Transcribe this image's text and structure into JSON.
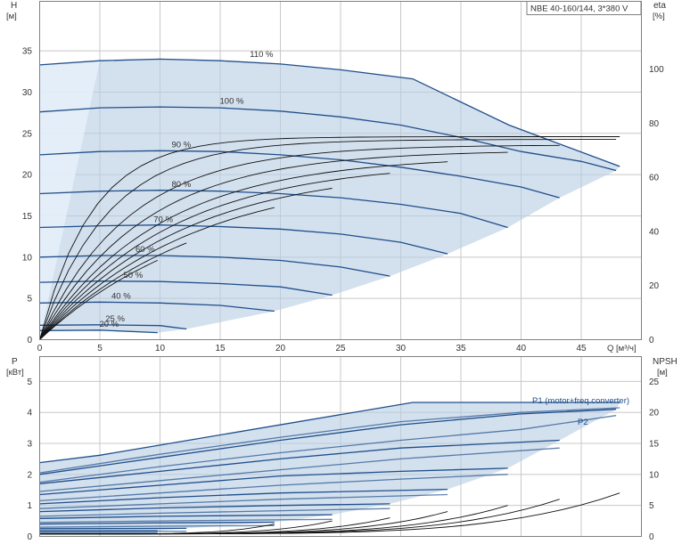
{
  "chart_data": [
    {
      "type": "line",
      "title": "NBE 40-160/144, 3*380 V",
      "y_axis": {
        "label": "H",
        "unit": "[м]",
        "range": [
          0,
          41
        ],
        "ticks": [
          0,
          5,
          10,
          15,
          20,
          25,
          30,
          35
        ]
      },
      "y2_axis": {
        "label": "eta",
        "unit": "[%]",
        "range": [
          0,
          125
        ],
        "ticks": [
          0,
          20,
          40,
          60,
          80,
          100
        ]
      },
      "x_axis": {
        "label": "Q [м³/ч]",
        "range": [
          0,
          50
        ],
        "ticks": [
          0,
          5,
          10,
          15,
          20,
          25,
          30,
          35,
          40,
          45
        ]
      },
      "grid": true,
      "speed_curves": [
        {
          "name": "110 %",
          "points": [
            [
              0,
              33.3
            ],
            [
              5,
              33.8
            ],
            [
              10,
              34.0
            ],
            [
              15,
              33.8
            ],
            [
              20,
              33.4
            ],
            [
              25,
              32.7
            ],
            [
              31,
              31.6
            ],
            [
              39,
              26.0
            ],
            [
              48.2,
              21.0
            ]
          ]
        },
        {
          "name": "100 %",
          "points": [
            [
              0,
              27.6
            ],
            [
              5,
              28.1
            ],
            [
              10,
              28.2
            ],
            [
              15,
              28.1
            ],
            [
              20,
              27.7
            ],
            [
              25,
              27.0
            ],
            [
              30,
              26.0
            ],
            [
              35,
              24.5
            ],
            [
              40,
              22.8
            ],
            [
              45,
              21.6
            ],
            [
              47.9,
              20.5
            ]
          ]
        },
        {
          "name": "90 %",
          "points": [
            [
              0,
              22.4
            ],
            [
              5,
              22.8
            ],
            [
              10,
              22.9
            ],
            [
              15,
              22.8
            ],
            [
              20,
              22.4
            ],
            [
              25,
              21.8
            ],
            [
              30,
              20.9
            ],
            [
              35,
              19.8
            ],
            [
              40,
              18.5
            ],
            [
              43.2,
              17.2
            ]
          ]
        },
        {
          "name": "80 %",
          "points": [
            [
              0,
              17.7
            ],
            [
              5,
              18.0
            ],
            [
              10,
              18.1
            ],
            [
              15,
              18.0
            ],
            [
              20,
              17.7
            ],
            [
              25,
              17.2
            ],
            [
              30,
              16.4
            ],
            [
              35,
              15.3
            ],
            [
              38.9,
              13.6
            ]
          ]
        },
        {
          "name": "70 %",
          "points": [
            [
              0,
              13.6
            ],
            [
              5,
              13.8
            ],
            [
              10,
              13.9
            ],
            [
              15,
              13.7
            ],
            [
              20,
              13.4
            ],
            [
              25,
              12.8
            ],
            [
              30,
              11.8
            ],
            [
              33.9,
              10.4
            ]
          ]
        },
        {
          "name": "60 %",
          "points": [
            [
              0,
              10.0
            ],
            [
              5,
              10.2
            ],
            [
              10,
              10.2
            ],
            [
              15,
              10.0
            ],
            [
              20,
              9.6
            ],
            [
              25,
              8.8
            ],
            [
              29.1,
              7.7
            ]
          ]
        },
        {
          "name": "50 %",
          "points": [
            [
              0,
              6.95
            ],
            [
              5,
              7.1
            ],
            [
              10,
              7.05
            ],
            [
              15,
              6.8
            ],
            [
              20,
              6.4
            ],
            [
              24.3,
              5.4
            ]
          ]
        },
        {
          "name": "40 %",
          "points": [
            [
              0,
              4.45
            ],
            [
              5,
              4.55
            ],
            [
              10,
              4.45
            ],
            [
              15,
              4.15
            ],
            [
              19.5,
              3.45
            ]
          ]
        },
        {
          "name": "25 %",
          "points": [
            [
              0,
              1.75
            ],
            [
              5,
              1.8
            ],
            [
              10,
              1.7
            ],
            [
              12.2,
              1.3
            ]
          ]
        },
        {
          "name": "20 %",
          "points": [
            [
              0,
              1.1
            ],
            [
              5,
              1.15
            ],
            [
              9.8,
              0.85
            ]
          ]
        }
      ],
      "eta_curves": [
        {
          "peak": 75,
          "qmax": 48.2,
          "q90": 10
        },
        {
          "peak": 74,
          "qmax": 47.9,
          "q90": 13
        },
        {
          "peak": 72,
          "qmax": 43.2,
          "q90": 17
        },
        {
          "peak": 70,
          "qmax": 38.9,
          "q90": 20
        },
        {
          "peak": 68,
          "qmax": 33.9,
          "q90": 23
        },
        {
          "peak": 66,
          "qmax": 29.1,
          "q90": 25
        },
        {
          "peak": 64,
          "qmax": 24.3,
          "q90": 27
        },
        {
          "peak": 62,
          "qmax": 19.5,
          "q90": 29
        },
        {
          "peak": 60,
          "qmax": 12.2,
          "q90": 31
        },
        {
          "peak": 58,
          "qmax": 9.8,
          "q90": 32
        }
      ]
    },
    {
      "type": "line",
      "y_axis": {
        "label": "P",
        "unit": "[кВт]",
        "range": [
          0,
          5.8
        ],
        "ticks": [
          0,
          1,
          2,
          3,
          4,
          5
        ]
      },
      "y2_axis": {
        "label": "NPSH",
        "unit": "[м]",
        "range": [
          0,
          29
        ],
        "ticks": [
          0,
          5,
          10,
          15,
          20,
          25
        ]
      },
      "x_axis": {
        "range": [
          0,
          50
        ]
      },
      "grid": true,
      "series_labels": [
        "P1 (motor+freq.converter)",
        "P2"
      ],
      "p1_curves": [
        {
          "points": [
            [
              0,
              2.38
            ],
            [
              5,
              2.62
            ],
            [
              31,
              4.32
            ],
            [
              48.2,
              4.32
            ]
          ]
        },
        {
          "points": [
            [
              0,
              2.0
            ],
            [
              10,
              2.55
            ],
            [
              20,
              3.1
            ],
            [
              30,
              3.6
            ],
            [
              40,
              3.95
            ],
            [
              47.9,
              4.1
            ]
          ]
        },
        {
          "points": [
            [
              0,
              1.7
            ],
            [
              10,
              2.1
            ],
            [
              20,
              2.5
            ],
            [
              30,
              2.85
            ],
            [
              43.2,
              3.1
            ]
          ]
        },
        {
          "points": [
            [
              0,
              1.35
            ],
            [
              10,
              1.65
            ],
            [
              20,
              1.95
            ],
            [
              30,
              2.1
            ],
            [
              38.9,
              2.2
            ]
          ]
        },
        {
          "points": [
            [
              0,
              1.05
            ],
            [
              10,
              1.25
            ],
            [
              20,
              1.4
            ],
            [
              33.9,
              1.52
            ]
          ]
        },
        {
          "points": [
            [
              0,
              0.8
            ],
            [
              10,
              0.92
            ],
            [
              20,
              1.0
            ],
            [
              29.1,
              1.05
            ]
          ]
        },
        {
          "points": [
            [
              0,
              0.58
            ],
            [
              10,
              0.65
            ],
            [
              24.3,
              0.7
            ]
          ]
        },
        {
          "points": [
            [
              0,
              0.4
            ],
            [
              10,
              0.44
            ],
            [
              19.5,
              0.46
            ]
          ]
        },
        {
          "points": [
            [
              0,
              0.25
            ],
            [
              12.2,
              0.26
            ]
          ]
        },
        {
          "points": [
            [
              0,
              0.18
            ],
            [
              9.8,
              0.18
            ]
          ]
        }
      ],
      "p2_curves": [
        {
          "points": [
            [
              0,
              2.05
            ],
            [
              10,
              2.65
            ],
            [
              20,
              3.2
            ],
            [
              30,
              3.7
            ],
            [
              40,
              4.0
            ],
            [
              48.2,
              4.15
            ]
          ]
        },
        {
          "points": [
            [
              0,
              1.75
            ],
            [
              10,
              2.25
            ],
            [
              20,
              2.7
            ],
            [
              30,
              3.1
            ],
            [
              40,
              3.45
            ],
            [
              47.9,
              3.9
            ]
          ]
        },
        {
          "points": [
            [
              0,
              1.45
            ],
            [
              10,
              1.8
            ],
            [
              20,
              2.15
            ],
            [
              30,
              2.5
            ],
            [
              43.2,
              2.85
            ]
          ]
        },
        {
          "points": [
            [
              0,
              1.15
            ],
            [
              10,
              1.4
            ],
            [
              20,
              1.65
            ],
            [
              30,
              1.85
            ],
            [
              38.9,
              2.0
            ]
          ]
        },
        {
          "points": [
            [
              0,
              0.9
            ],
            [
              10,
              1.05
            ],
            [
              20,
              1.2
            ],
            [
              33.9,
              1.35
            ]
          ]
        },
        {
          "points": [
            [
              0,
              0.65
            ],
            [
              10,
              0.75
            ],
            [
              20,
              0.83
            ],
            [
              29.1,
              0.9
            ]
          ]
        },
        {
          "points": [
            [
              0,
              0.45
            ],
            [
              10,
              0.5
            ],
            [
              24.3,
              0.55
            ]
          ]
        },
        {
          "points": [
            [
              0,
              0.3
            ],
            [
              10,
              0.33
            ],
            [
              19.5,
              0.35
            ]
          ]
        },
        {
          "points": [
            [
              0,
              0.16
            ],
            [
              12.2,
              0.17
            ]
          ]
        },
        {
          "points": [
            [
              0,
              0.12
            ],
            [
              9.8,
              0.12
            ]
          ]
        }
      ],
      "npsh_curves": [
        {
          "qmax": 48.2,
          "ymax": 7.0
        },
        {
          "qmax": 43.2,
          "ymax": 6.0
        },
        {
          "qmax": 38.9,
          "ymax": 5.0
        },
        {
          "qmax": 33.9,
          "ymax": 4.0
        },
        {
          "qmax": 29.1,
          "ymax": 3.0
        },
        {
          "qmax": 24.3,
          "ymax": 2.5
        },
        {
          "qmax": 19.5,
          "ymax": 2.0
        }
      ]
    }
  ]
}
